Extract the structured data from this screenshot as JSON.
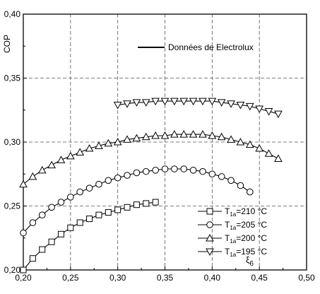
{
  "chart_data": {
    "type": "line",
    "xlabel": "ξ",
    "xlabel_sub": "6",
    "ylabel": "COP",
    "xlim": [
      0.2,
      0.5
    ],
    "ylim": [
      0.2,
      0.4
    ],
    "x_ticks": [
      "0,20",
      "0,25",
      "0,30",
      "0,35",
      "0,40",
      "0,45",
      "0,50"
    ],
    "y_ticks": [
      "0,20",
      "0,25",
      "0,30",
      "0,35",
      "0,40"
    ],
    "grid": true,
    "reference_line_label": "Données de Electrolux",
    "legend_position": "bottom-right",
    "series": [
      {
        "name": "T1a=210 °C",
        "legend": {
          "main": "T",
          "sub": "1a",
          "rest": "=210 °C"
        },
        "marker": "square",
        "x": [
          0.2,
          0.21,
          0.22,
          0.23,
          0.24,
          0.25,
          0.26,
          0.27,
          0.28,
          0.29,
          0.3,
          0.31,
          0.32,
          0.33,
          0.34
        ],
        "y": [
          0.2,
          0.209,
          0.216,
          0.222,
          0.228,
          0.233,
          0.237,
          0.24,
          0.243,
          0.245,
          0.247,
          0.249,
          0.251,
          0.252,
          0.253
        ]
      },
      {
        "name": "T1a=205 °C",
        "legend": {
          "main": "T",
          "sub": "1a",
          "rest": "=205 °C"
        },
        "marker": "circle",
        "x": [
          0.2,
          0.21,
          0.22,
          0.23,
          0.24,
          0.25,
          0.26,
          0.27,
          0.28,
          0.29,
          0.3,
          0.31,
          0.32,
          0.33,
          0.34,
          0.35,
          0.36,
          0.37,
          0.38,
          0.39,
          0.4,
          0.41,
          0.42,
          0.43,
          0.44
        ],
        "y": [
          0.229,
          0.237,
          0.243,
          0.249,
          0.253,
          0.257,
          0.261,
          0.264,
          0.267,
          0.27,
          0.272,
          0.274,
          0.276,
          0.277,
          0.278,
          0.279,
          0.279,
          0.279,
          0.278,
          0.277,
          0.275,
          0.273,
          0.27,
          0.266,
          0.261
        ]
      },
      {
        "name": "T1a=200 °C",
        "legend": {
          "main": "T",
          "sub": "1a",
          "rest": "=200 °C"
        },
        "marker": "triangle-up",
        "x": [
          0.2,
          0.21,
          0.22,
          0.23,
          0.24,
          0.25,
          0.26,
          0.27,
          0.28,
          0.29,
          0.3,
          0.31,
          0.32,
          0.33,
          0.34,
          0.35,
          0.36,
          0.37,
          0.38,
          0.39,
          0.4,
          0.41,
          0.42,
          0.43,
          0.44,
          0.45,
          0.46,
          0.47
        ],
        "y": [
          0.267,
          0.273,
          0.278,
          0.282,
          0.286,
          0.289,
          0.292,
          0.295,
          0.297,
          0.299,
          0.3,
          0.302,
          0.303,
          0.304,
          0.305,
          0.305,
          0.306,
          0.306,
          0.306,
          0.306,
          0.305,
          0.304,
          0.302,
          0.3,
          0.298,
          0.295,
          0.291,
          0.287
        ]
      },
      {
        "name": "T1a=195 °C",
        "legend": {
          "main": "T",
          "sub": "1a",
          "rest": "=195 °C"
        },
        "marker": "triangle-down",
        "x": [
          0.3,
          0.31,
          0.32,
          0.33,
          0.34,
          0.35,
          0.36,
          0.37,
          0.38,
          0.39,
          0.4,
          0.41,
          0.42,
          0.43,
          0.44,
          0.45,
          0.46,
          0.47
        ],
        "y": [
          0.329,
          0.33,
          0.331,
          0.331,
          0.332,
          0.332,
          0.332,
          0.332,
          0.332,
          0.332,
          0.332,
          0.331,
          0.33,
          0.329,
          0.328,
          0.326,
          0.324,
          0.322
        ]
      }
    ]
  }
}
